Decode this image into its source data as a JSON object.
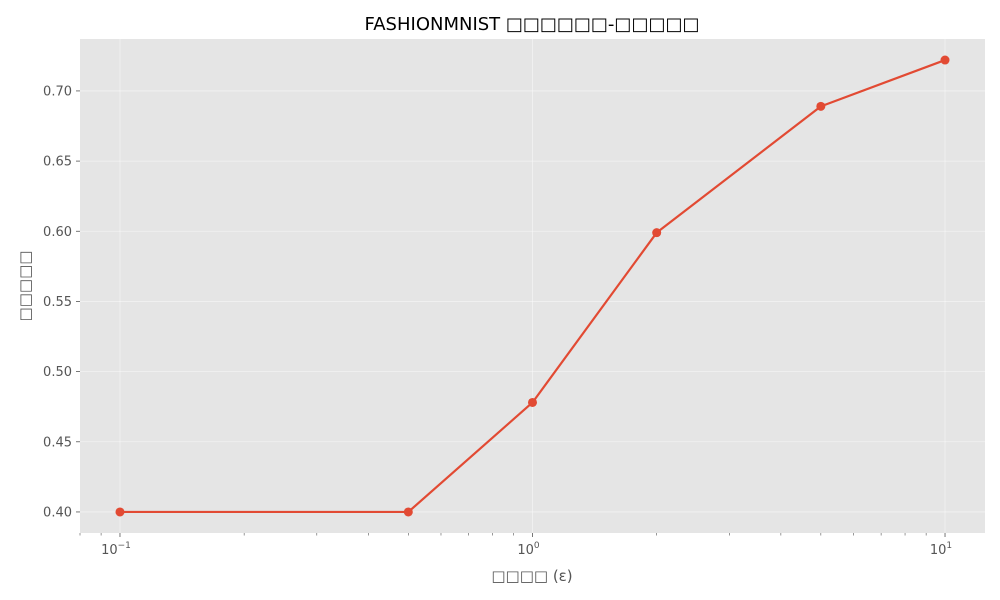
{
  "chart_data": {
    "type": "line",
    "title": "FASHIONMNIST □□□□□□-□□□□□",
    "xlabel": "□□□□ (ε)",
    "ylabel": "□□□□□",
    "x_scale": "log",
    "xlim": [
      0.08,
      12.5
    ],
    "ylim": [
      0.385,
      0.737
    ],
    "x_ticks": [
      {
        "value": 0.1,
        "base": "10",
        "exp": "−1"
      },
      {
        "value": 1,
        "base": "10",
        "exp": "0"
      },
      {
        "value": 10,
        "base": "10",
        "exp": "1"
      }
    ],
    "y_ticks": [
      "0.40",
      "0.45",
      "0.50",
      "0.55",
      "0.60",
      "0.65",
      "0.70"
    ],
    "grid": true,
    "legend": "none",
    "series": [
      {
        "color": "#E24A33",
        "x": [
          0.1,
          0.5,
          1,
          2,
          5,
          10
        ],
        "y": [
          0.4,
          0.4,
          0.478,
          0.599,
          0.689,
          0.722
        ]
      }
    ],
    "colors": {
      "plot_background": "#E5E5E5",
      "line": "#E24A33"
    }
  }
}
